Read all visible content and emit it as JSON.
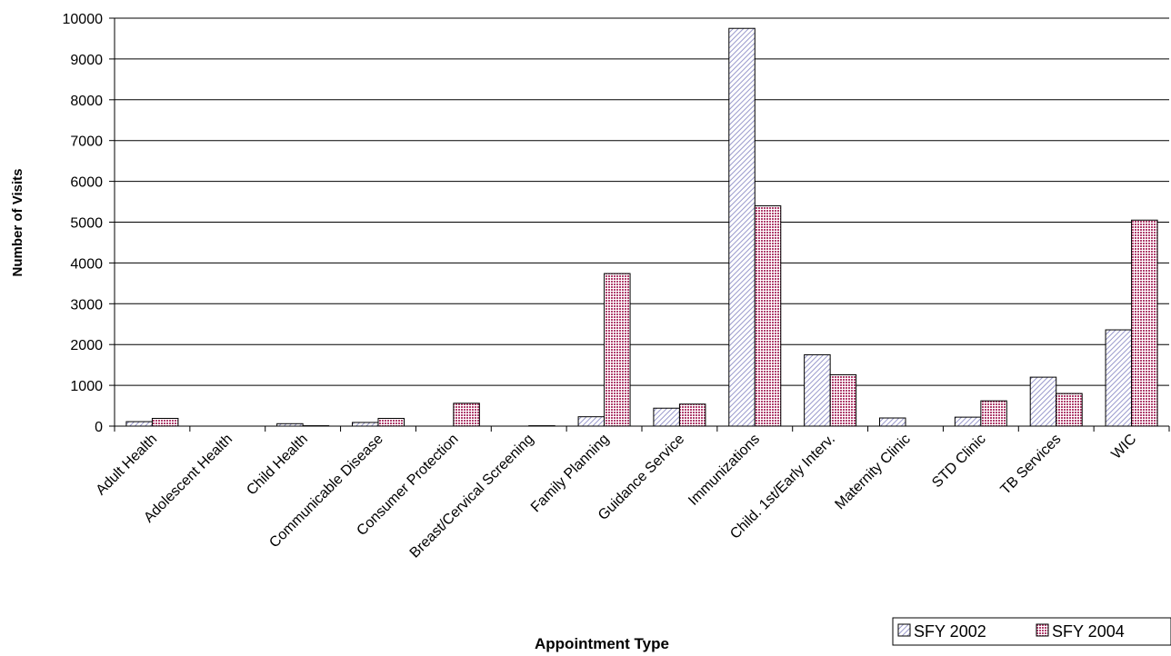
{
  "chart_data": {
    "type": "bar",
    "title": "",
    "xlabel": "Appointment Type",
    "ylabel": "Number of Visits",
    "ylim": [
      0,
      10000
    ],
    "yticks": [
      0,
      1000,
      2000,
      3000,
      4000,
      5000,
      6000,
      7000,
      8000,
      9000,
      10000
    ],
    "grid": true,
    "legend_position": "bottom-right",
    "categories": [
      "Adult Health",
      "Adolescent Health",
      "Child Health",
      "Communicable Disease",
      "Consumer Protection",
      "Breast/Cervical Screening",
      "Family Planning",
      "Guidance Service",
      "Immunizations",
      "Child. 1st/Early Interv.",
      "Maternity Clinic",
      "STD Clinic",
      "TB Services",
      "WIC"
    ],
    "series": [
      {
        "name": "SFY 2002",
        "color": "#ccccff",
        "values": [
          110,
          0,
          60,
          90,
          0,
          0,
          230,
          440,
          9750,
          1750,
          200,
          220,
          1200,
          2360
        ]
      },
      {
        "name": "SFY 2004",
        "color": "#cc6699",
        "values": [
          190,
          0,
          10,
          190,
          560,
          10,
          3740,
          540,
          5400,
          1260,
          0,
          620,
          800,
          5050
        ]
      }
    ]
  }
}
